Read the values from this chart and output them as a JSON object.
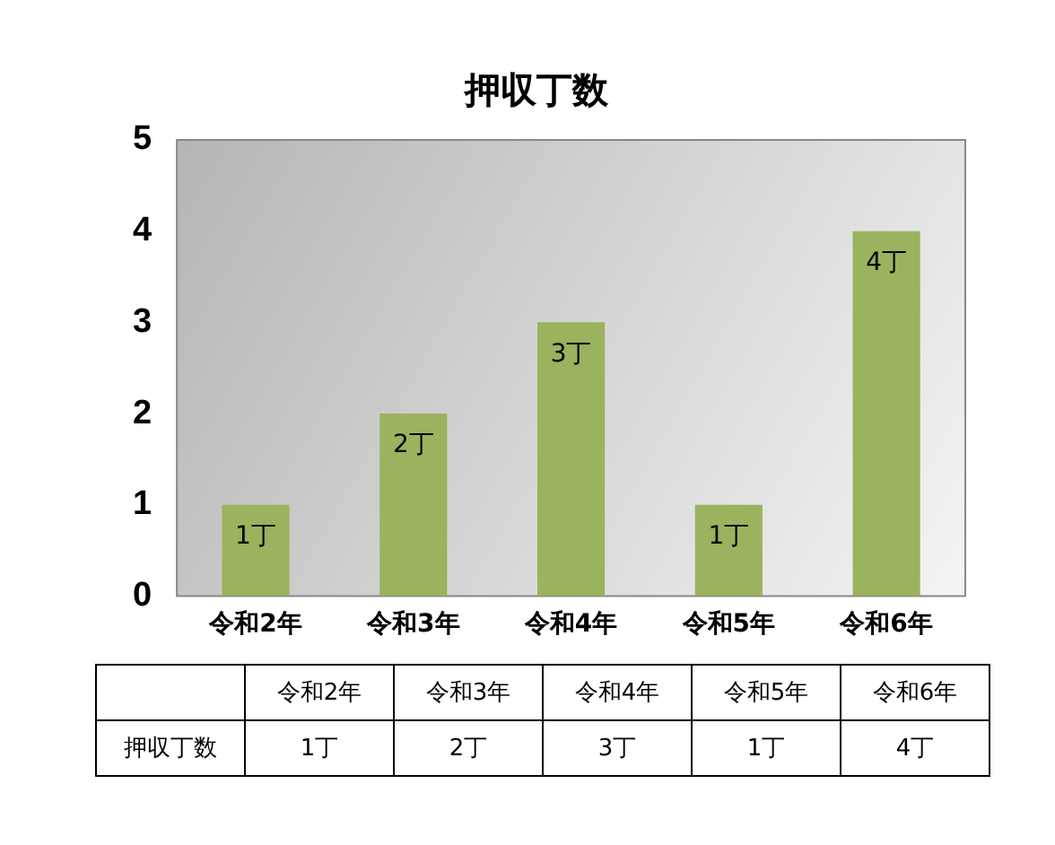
{
  "chart_data": {
    "type": "bar",
    "title": "押収丁数",
    "categories": [
      "令和2年",
      "令和3年",
      "令和4年",
      "令和5年",
      "令和6年"
    ],
    "series": [
      {
        "name": "押収丁数",
        "color": "#9bb25e",
        "values": [
          1,
          2,
          3,
          1,
          4
        ],
        "value_labels": [
          "1丁",
          "2丁",
          "3丁",
          "1丁",
          "4丁"
        ]
      }
    ],
    "ylim": [
      0,
      5
    ],
    "yticks": [
      0,
      1,
      2,
      3,
      4,
      5
    ],
    "grid": false,
    "legend": false
  }
}
